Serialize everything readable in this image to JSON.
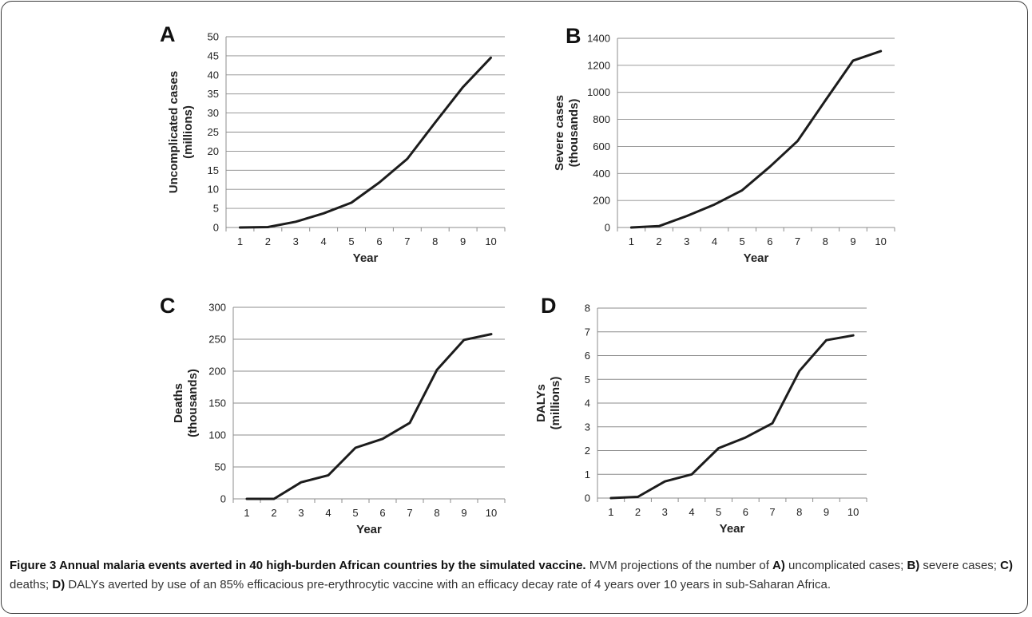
{
  "chart_data": [
    {
      "type": "line",
      "panel": "A",
      "x": [
        1,
        2,
        3,
        4,
        5,
        6,
        7,
        8,
        9,
        10
      ],
      "values": [
        0,
        0.1,
        1.5,
        3.7,
        6.5,
        11.8,
        18,
        27.5,
        36.8,
        44.5
      ],
      "xlabel": "Year",
      "ylabel": [
        "Uncomplicated cases",
        "(millions)"
      ],
      "xlim": [
        1,
        10
      ],
      "ylim": [
        0,
        50
      ],
      "yticks": [
        0,
        5,
        10,
        15,
        20,
        25,
        30,
        35,
        40,
        45,
        50
      ],
      "grid": true
    },
    {
      "type": "line",
      "panel": "B",
      "x": [
        1,
        2,
        3,
        4,
        5,
        6,
        7,
        8,
        9,
        10
      ],
      "values": [
        0,
        10,
        85,
        170,
        275,
        450,
        640,
        940,
        1235,
        1305
      ],
      "xlabel": "Year",
      "ylabel": [
        "Severe cases",
        "(thousands)"
      ],
      "xlim": [
        1,
        10
      ],
      "ylim": [
        0,
        1400
      ],
      "yticks": [
        0,
        200,
        400,
        600,
        800,
        1000,
        1200,
        1400
      ],
      "grid": true
    },
    {
      "type": "line",
      "panel": "C",
      "x": [
        1,
        2,
        3,
        4,
        5,
        6,
        7,
        8,
        9,
        10
      ],
      "values": [
        0,
        0,
        26,
        37,
        80,
        94,
        119,
        202,
        249,
        258
      ],
      "xlabel": "Year",
      "ylabel": [
        "Deaths",
        "(thousands)"
      ],
      "xlim": [
        1,
        10
      ],
      "ylim": [
        0,
        300
      ],
      "yticks": [
        0,
        50,
        100,
        150,
        200,
        250,
        300
      ],
      "grid": true
    },
    {
      "type": "line",
      "panel": "D",
      "x": [
        1,
        2,
        3,
        4,
        5,
        6,
        7,
        8,
        9,
        10
      ],
      "values": [
        0,
        0.05,
        0.7,
        1.0,
        2.1,
        2.55,
        3.15,
        5.35,
        6.65,
        6.85
      ],
      "xlabel": "Year",
      "ylabel": [
        "DALYs",
        "(millions)"
      ],
      "xlim": [
        1,
        10
      ],
      "ylim": [
        0,
        8
      ],
      "yticks": [
        0,
        1,
        2,
        3,
        4,
        5,
        6,
        7,
        8
      ],
      "grid": true
    }
  ],
  "caption": {
    "title": "Figure 3 Annual malaria events averted in 40 high-burden African countries by the simulated vaccine.",
    "intro": " MVM projections of the number of ",
    "parts": [
      {
        "key": "A)",
        "text": " uncomplicated cases; "
      },
      {
        "key": "B)",
        "text": " severe cases; "
      },
      {
        "key": "C)",
        "text": " deaths; "
      },
      {
        "key": "D)",
        "text": " DALYs averted by use of an 85% efficacious pre-erythrocytic vaccine with an efficacy decay rate of 4 years over 10 years in sub-Saharan Africa."
      }
    ]
  }
}
